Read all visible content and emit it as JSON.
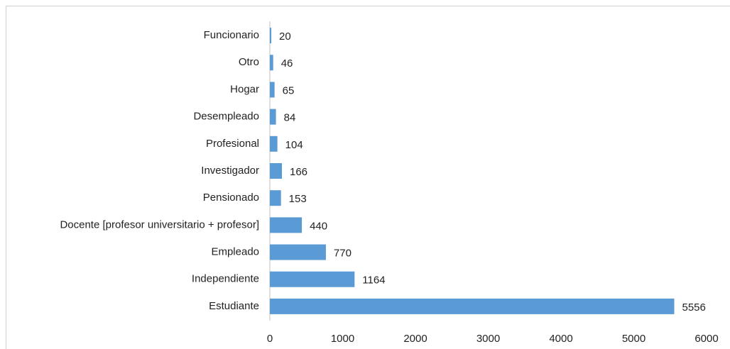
{
  "chart_data": {
    "type": "bar",
    "orientation": "horizontal",
    "categories": [
      "Funcionario",
      "Otro",
      "Hogar",
      "Desempleado",
      "Profesional",
      "Investigador",
      "Pensionado",
      "Docente [profesor universitario + profesor]",
      "Empleado",
      "Independiente",
      "Estudiante"
    ],
    "values": [
      20,
      46,
      65,
      84,
      104,
      166,
      153,
      440,
      770,
      1164,
      5556
    ],
    "color": "#5b9bd5",
    "xlim": [
      0,
      6000
    ],
    "xticks": [
      0,
      1000,
      2000,
      3000,
      4000,
      5000,
      6000
    ],
    "grid": false
  }
}
